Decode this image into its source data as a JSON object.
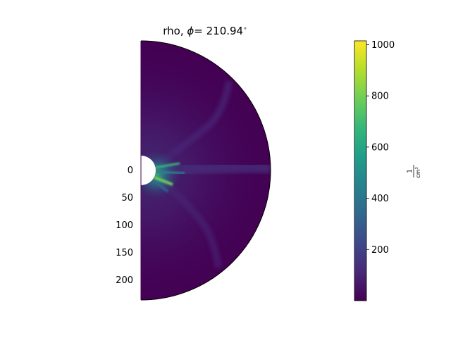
{
  "chart_data": {
    "type": "heatmap",
    "title_prefix": "rho, ",
    "title_symbol": "ϕ",
    "title_value": "= 210.94",
    "title_degree": "∘",
    "plot_kind": "meridional half-disk density map",
    "y_ticks": [
      0,
      50,
      100,
      150,
      200
    ],
    "y_range": [
      0,
      235
    ],
    "colorbar": {
      "colormap": "viridis",
      "range": [
        0,
        1015
      ],
      "ticks": [
        200,
        400,
        600,
        800,
        1000
      ],
      "label_numerator": "1",
      "label_denominator": "cm",
      "label_exponent": "3"
    },
    "colors": [
      "#440154",
      "#482878",
      "#3e4989",
      "#31688e",
      "#26828e",
      "#1f9e89",
      "#35b779",
      "#6ece58",
      "#b5de2b",
      "#fde725"
    ]
  }
}
